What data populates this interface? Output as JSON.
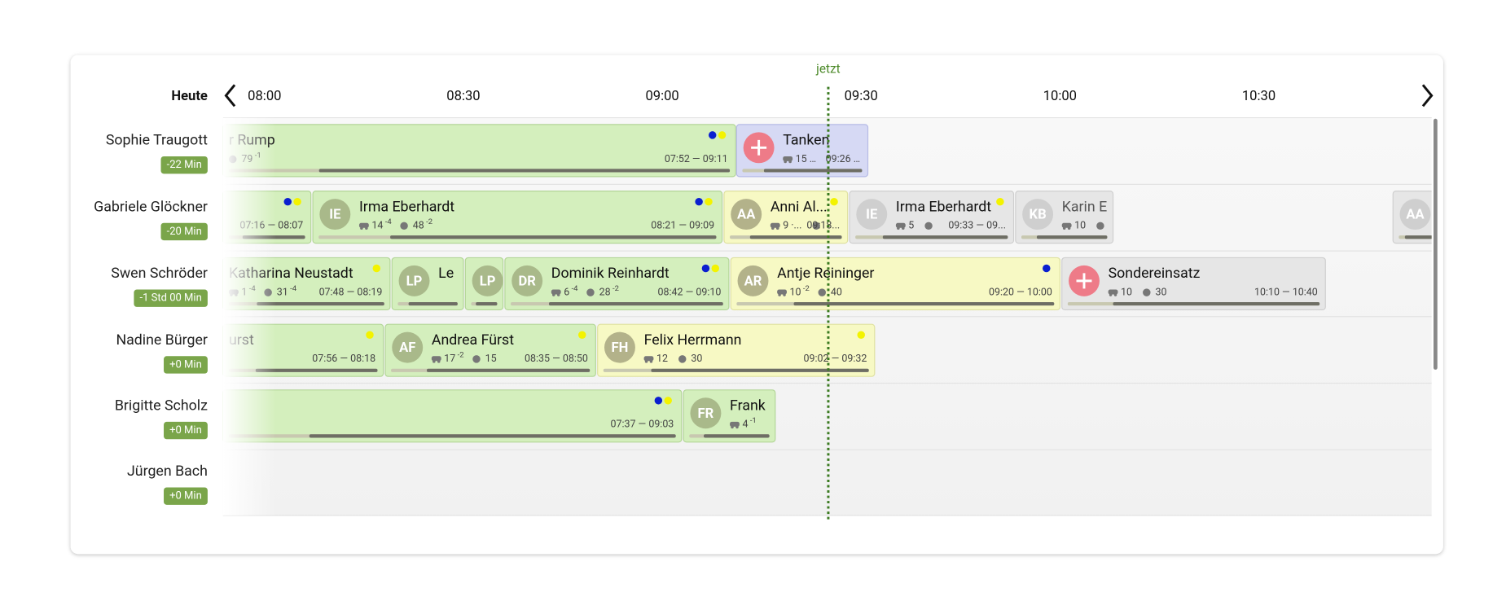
{
  "header": {
    "label": "Heute",
    "now_label": "jetzt",
    "times": [
      "08:00",
      "08:30",
      "09:00",
      "09:30",
      "10:00",
      "10:30"
    ]
  },
  "rows": [
    {
      "name": "Sophie Traugott",
      "badge": "-22 Min",
      "tasks": [
        {
          "name": "r Rump",
          "stats": [
            {
              "value": "79",
              "delta": "-1"
            }
          ],
          "time": "07:52 — 09:11"
        },
        {
          "name": "Tanken",
          "stats": [
            {
              "value": "15 …"
            }
          ],
          "time": "09:26 …"
        }
      ]
    },
    {
      "name": "Gabriele Glöckner",
      "badge": "-20 Min",
      "tasks": [
        {
          "time": "07:16 — 08:07"
        },
        {
          "initials": "IE",
          "name": "Irma Eberhardt",
          "stats": [
            {
              "value": "14",
              "delta": "-4"
            },
            {
              "value": "48",
              "delta": "-2"
            }
          ],
          "time": "08:21 — 09:09"
        },
        {
          "initials": "AA",
          "name": "Anni Al...",
          "stats": [
            {
              "value": "9 ·..."
            }
          ],
          "time": "09:18..."
        },
        {
          "initials": "IE",
          "name": "Irma Eberhardt",
          "stats": [
            {
              "value": "5"
            }
          ],
          "time": "09:33 — 09..."
        },
        {
          "initials": "KB",
          "name": "Karin E",
          "stats": [
            {
              "value": "10"
            }
          ]
        },
        {
          "initials": "AA"
        }
      ]
    },
    {
      "name": "Swen Schröder",
      "badge": "-1 Std 00 Min",
      "tasks": [
        {
          "name": "Katharina Neustadt",
          "stats": [
            {
              "value": "1",
              "delta": "-4"
            },
            {
              "value": "31",
              "delta": "-4"
            }
          ],
          "time": "07:48 — 08:19"
        },
        {
          "initials": "LP",
          "name": "Le"
        },
        {
          "initials": "LP"
        },
        {
          "initials": "DR",
          "name": "Dominik Reinhardt",
          "stats": [
            {
              "value": "6",
              "delta": "-4"
            },
            {
              "value": "28",
              "delta": "-2"
            }
          ],
          "time": "08:42 — 09:10"
        },
        {
          "initials": "AR",
          "name": "Antje Reininger",
          "stats": [
            {
              "value": "10",
              "delta": "-2"
            },
            {
              "value": "40"
            }
          ],
          "time": "09:20 — 10:00"
        },
        {
          "name": "Sondereinsatz",
          "stats": [
            {
              "value": "10"
            },
            {
              "value": "30"
            }
          ],
          "time": "10:10 — 10:40"
        }
      ]
    },
    {
      "name": "Nadine Bürger",
      "badge": "+0 Min",
      "tasks": [
        {
          "name": "urst",
          "time": "07:56 — 08:18"
        },
        {
          "initials": "AF",
          "name": "Andrea Fürst",
          "stats": [
            {
              "value": "17",
              "delta": "-2"
            },
            {
              "value": "15"
            }
          ],
          "time": "08:35 — 08:50"
        },
        {
          "initials": "FH",
          "name": "Felix Herrmann",
          "stats": [
            {
              "value": "12"
            },
            {
              "value": "30"
            }
          ],
          "time": "09:02 — 09:32"
        }
      ]
    },
    {
      "name": "Brigitte Scholz",
      "badge": "+0 Min",
      "tasks": [
        {
          "time": "07:37 — 09:03"
        },
        {
          "initials": "FR",
          "name": "Frank",
          "stats": [
            {
              "value": "4",
              "delta": "-1"
            }
          ]
        }
      ]
    },
    {
      "name": "Jürgen Bach",
      "badge": "+0 Min",
      "tasks": []
    }
  ]
}
